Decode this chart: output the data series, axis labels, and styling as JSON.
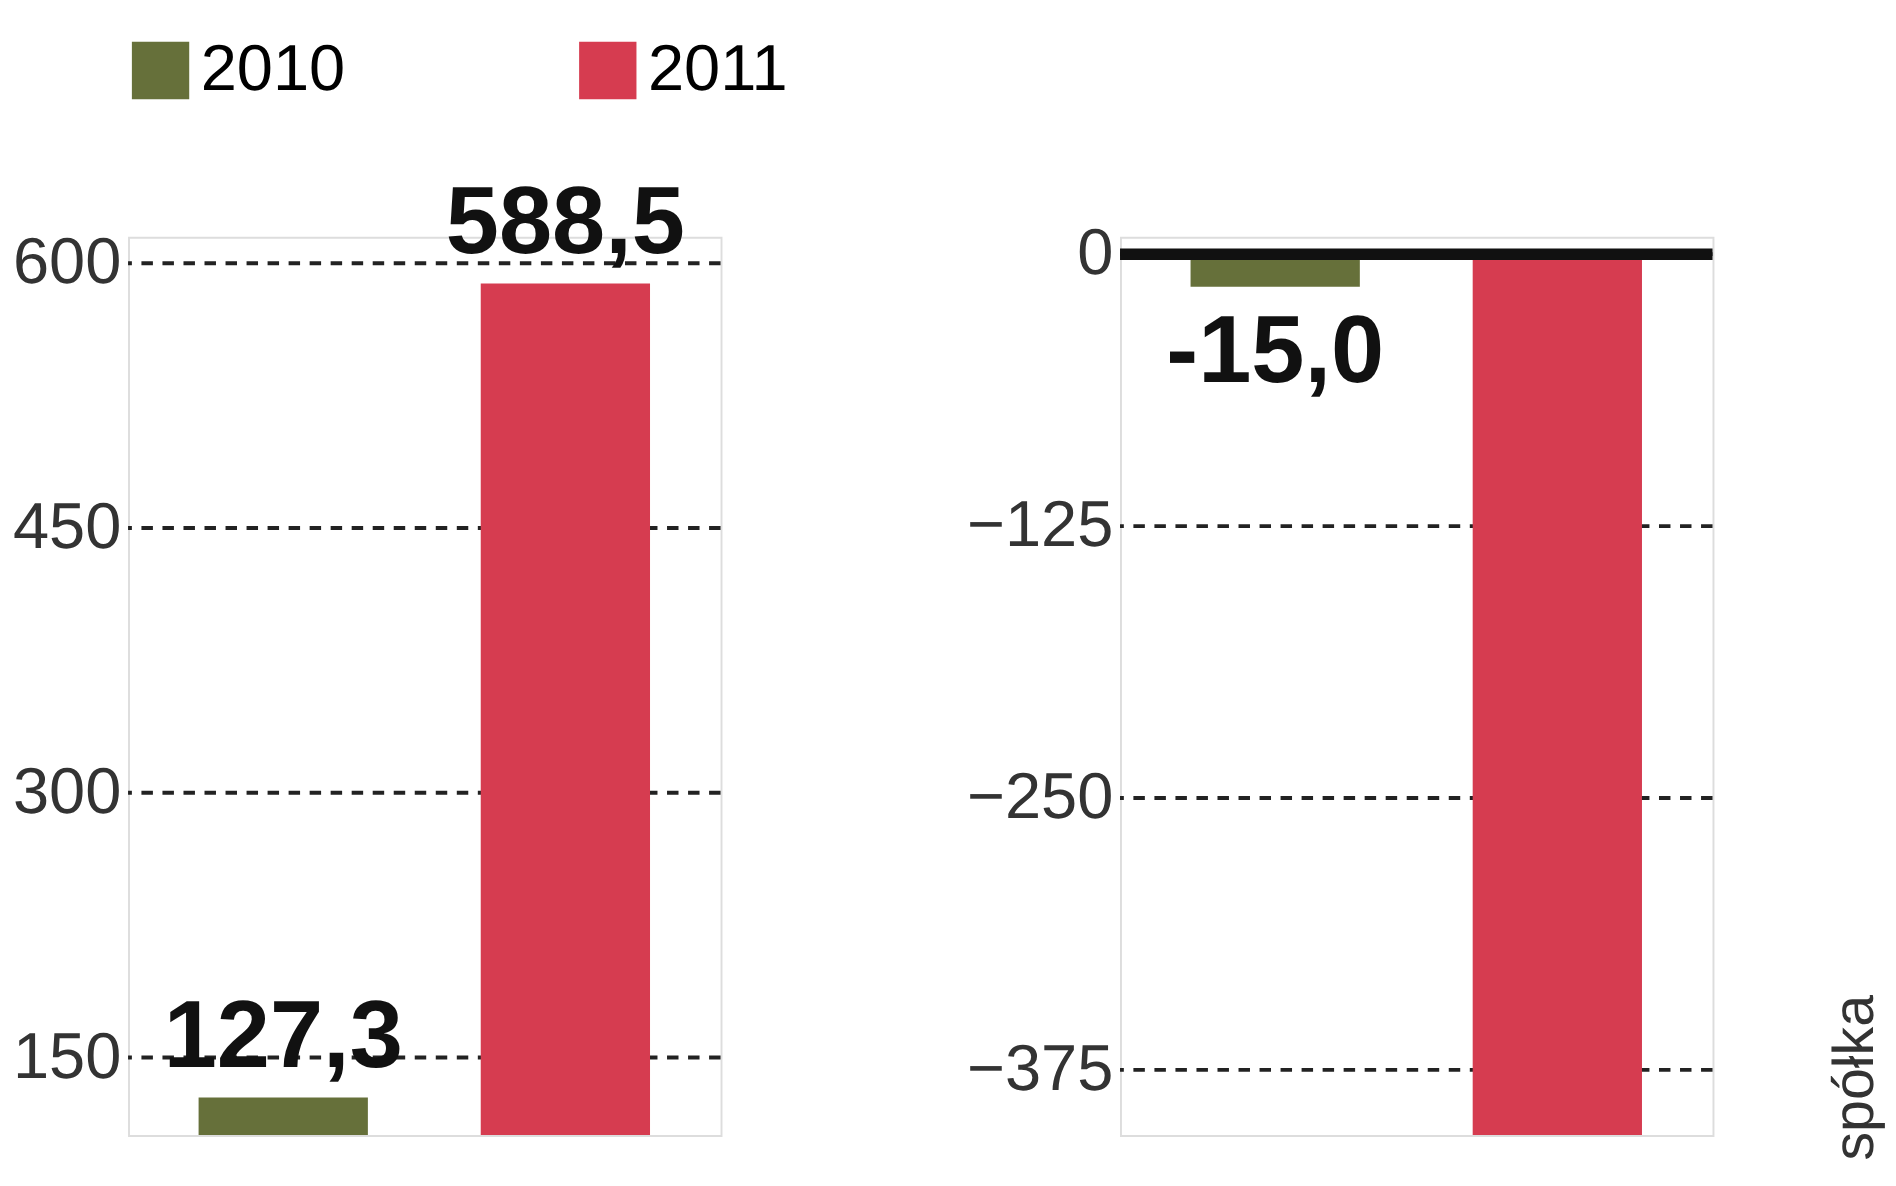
{
  "chart_data": [
    {
      "type": "bar",
      "categories": [
        null
      ],
      "series": [
        {
          "name": "2010",
          "color": "#66703a",
          "values": [
            127.3
          ],
          "value_labels": [
            "127,3"
          ]
        },
        {
          "name": "2011",
          "color": "#d63c50",
          "values": [
            588.5
          ],
          "value_labels": [
            "588,5"
          ]
        }
      ],
      "ylim": [
        106,
        615
      ],
      "yticks": [
        150,
        300,
        450,
        600
      ],
      "grid": "y",
      "legend": "top"
    },
    {
      "type": "bar",
      "categories": [
        null
      ],
      "series": [
        {
          "name": "2010",
          "color": "#66703a",
          "values": [
            -15.0
          ],
          "value_labels": [
            "-15,0"
          ]
        },
        {
          "name": "2011",
          "color": "#d63c50",
          "values": [
            -405
          ],
          "value_labels": [
            null
          ]
        }
      ],
      "ylim": [
        -405,
        8
      ],
      "yticks": [
        0,
        -125,
        -250,
        -375
      ],
      "grid": "y",
      "legend": false,
      "annotations": [
        "spółka"
      ]
    }
  ]
}
